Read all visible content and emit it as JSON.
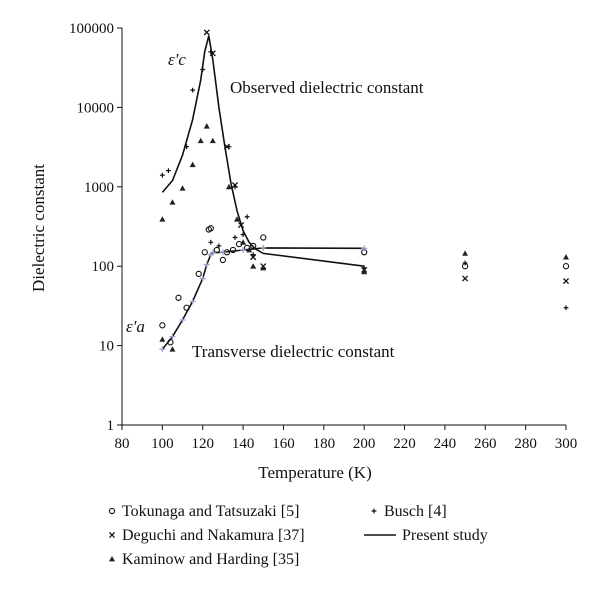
{
  "chart_data": {
    "type": "scatter",
    "xlabel": "Temperature (K)",
    "ylabel": "Dielectric constant",
    "xlim": [
      80,
      300
    ],
    "ylim": [
      1,
      100000
    ],
    "yscale": "log",
    "x_ticks": [
      "80",
      "100",
      "120",
      "140",
      "160",
      "180",
      "200",
      "220",
      "240",
      "260",
      "280",
      "300"
    ],
    "y_ticks": [
      "1",
      "10",
      "100",
      "1000",
      "10000",
      "100000"
    ],
    "grid": false,
    "legend_position": "bottom",
    "annotations": {
      "observed": "Observed dielectric constant",
      "transverse": "Transverse dielectric constant",
      "eps_c": "ε′c",
      "eps_a": "ε′a"
    },
    "series": [
      {
        "name": "Tokunaga and Tatsuzaki [5]",
        "marker": "circle",
        "points": [
          [
            100,
            18
          ],
          [
            104,
            11
          ],
          [
            108,
            40
          ],
          [
            112,
            30
          ],
          [
            118,
            80
          ],
          [
            121,
            150
          ],
          [
            123,
            290
          ],
          [
            124,
            300
          ],
          [
            127,
            160
          ],
          [
            130,
            120
          ],
          [
            132,
            150
          ],
          [
            135,
            160
          ],
          [
            138,
            190
          ],
          [
            142,
            170
          ],
          [
            145,
            180
          ],
          [
            150,
            230
          ],
          [
            200,
            150
          ],
          [
            250,
            100
          ],
          [
            300,
            100
          ]
        ]
      },
      {
        "name": "Deguchi and Nakamura [37]",
        "marker": "x",
        "points": [
          [
            122,
            88000
          ],
          [
            125,
            48000
          ],
          [
            132,
            3200
          ],
          [
            136,
            1050
          ],
          [
            139,
            330
          ],
          [
            145,
            130
          ],
          [
            150,
            100
          ],
          [
            200,
            90
          ],
          [
            250,
            70
          ],
          [
            300,
            65
          ]
        ]
      },
      {
        "name": "Kaminow and Harding [35]",
        "marker": "triangle",
        "points": [
          [
            100,
            390
          ],
          [
            105,
            640
          ],
          [
            110,
            960
          ],
          [
            115,
            1900
          ],
          [
            119,
            3800
          ],
          [
            122,
            5800
          ],
          [
            125,
            3800
          ],
          [
            133,
            1000
          ],
          [
            137,
            390
          ],
          [
            140,
            200
          ],
          [
            143,
            160
          ],
          [
            145,
            100
          ],
          [
            150,
            95
          ],
          [
            200,
            85
          ],
          [
            250,
            145
          ],
          [
            300,
            130
          ],
          [
            100,
            12
          ],
          [
            105,
            9
          ]
        ]
      },
      {
        "name": "Busch [4]",
        "marker": "plus",
        "points": [
          [
            100,
            1400
          ],
          [
            103,
            1600
          ],
          [
            112,
            3200
          ],
          [
            115,
            16500
          ],
          [
            120,
            30000
          ],
          [
            124,
            50000
          ],
          [
            133,
            3200
          ],
          [
            136,
            1000
          ],
          [
            142,
            420
          ],
          [
            140,
            250
          ],
          [
            136,
            230
          ],
          [
            128,
            180
          ],
          [
            124,
            200
          ],
          [
            145,
            140
          ],
          [
            200,
            95
          ],
          [
            250,
            110
          ],
          [
            300,
            30
          ]
        ]
      },
      {
        "name": "Present study",
        "marker": "line",
        "curves": [
          [
            [
              100,
              850
            ],
            [
              105,
              1200
            ],
            [
              110,
              2500
            ],
            [
              115,
              7000
            ],
            [
              119,
              22000
            ],
            [
              121,
              50000
            ],
            [
              123,
              80000
            ],
            [
              125,
              40000
            ],
            [
              128,
              10000
            ],
            [
              131,
              3200
            ],
            [
              134,
              1100
            ],
            [
              137,
              500
            ],
            [
              140,
              280
            ],
            [
              143,
              200
            ],
            [
              146,
              165
            ],
            [
              150,
              145
            ],
            [
              200,
              100
            ]
          ],
          [
            [
              100,
              9
            ],
            [
              105,
              13
            ],
            [
              110,
              21
            ],
            [
              115,
              36
            ],
            [
              120,
              70
            ],
            [
              122,
              105
            ],
            [
              124,
              140
            ],
            [
              125,
              148
            ],
            [
              130,
              150
            ],
            [
              140,
              160
            ],
            [
              150,
              170
            ],
            [
              200,
              168
            ]
          ]
        ]
      }
    ]
  }
}
